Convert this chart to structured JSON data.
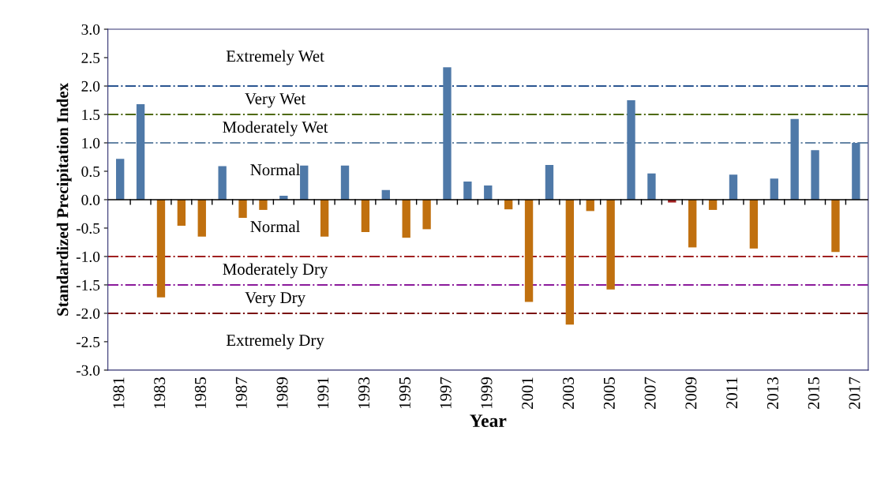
{
  "chart_data": {
    "type": "bar",
    "xlabel": "Year",
    "ylabel": "Standardized Precipitation Index",
    "categories": [
      "1981",
      null,
      "1983",
      null,
      "1985",
      null,
      "1987",
      null,
      "1989",
      null,
      "1991",
      null,
      "1993",
      null,
      "1995",
      null,
      "1997",
      null,
      "1999",
      null,
      "2001",
      null,
      "2003",
      null,
      "2005",
      null,
      "2007",
      null,
      "2009",
      null,
      "2011",
      null,
      "2013",
      null,
      "2015",
      null,
      "2017"
    ],
    "values": [
      0.72,
      1.68,
      -1.72,
      -0.46,
      -0.65,
      0.59,
      -0.32,
      -0.18,
      0.07,
      0.6,
      -0.65,
      0.6,
      -0.57,
      0.17,
      -0.67,
      -0.52,
      2.33,
      0.32,
      0.25,
      -0.17,
      -1.8,
      0.61,
      -2.2,
      -0.2,
      -1.58,
      1.75,
      0.46,
      -0.05,
      -0.84,
      -0.18,
      0.44,
      -0.86,
      0.37,
      1.42,
      0.87,
      -0.92,
      1.0
    ],
    "colors": [
      "#4f79a8",
      "#4f79a8",
      "#c0700f",
      "#c0700f",
      "#c0700f",
      "#4f79a8",
      "#c0700f",
      "#c0700f",
      "#4f79a8",
      "#4f79a8",
      "#c0700f",
      "#4f79a8",
      "#c0700f",
      "#4f79a8",
      "#c0700f",
      "#c0700f",
      "#4f79a8",
      "#4f79a8",
      "#4f79a8",
      "#c0700f",
      "#c0700f",
      "#4f79a8",
      "#c0700f",
      "#c0700f",
      "#c0700f",
      "#4f79a8",
      "#4f79a8",
      "#a02020",
      "#c0700f",
      "#c0700f",
      "#4f79a8",
      "#c0700f",
      "#4f79a8",
      "#4f79a8",
      "#4f79a8",
      "#c0700f",
      "#4f79a8"
    ],
    "ylim": [
      -3.0,
      3.0
    ],
    "yticks": [
      {
        "value": -3,
        "label": "-3.0"
      },
      {
        "value": -2.5,
        "label": "-2.5"
      },
      {
        "value": -2,
        "label": "-2.0"
      },
      {
        "value": -1.5,
        "label": "-1.5"
      },
      {
        "value": -1,
        "label": "-1.0"
      },
      {
        "value": -0.5,
        "label": "-0.5"
      },
      {
        "value": 0,
        "label": "0.0"
      },
      {
        "value": 0.5,
        "label": "0.5"
      },
      {
        "value": 1,
        "label": "1.0"
      },
      {
        "value": 1.5,
        "label": "1.5"
      },
      {
        "value": 2,
        "label": "2.0"
      },
      {
        "value": 2.5,
        "label": "2.5"
      },
      {
        "value": 3,
        "label": "3.0"
      }
    ],
    "ref_lines": [
      {
        "axis": "y",
        "value": 2.0,
        "color": "#2a5590",
        "line_style": "dashdot"
      },
      {
        "axis": "y",
        "value": 1.5,
        "color": "#4f6a10",
        "line_style": "dashdot"
      },
      {
        "axis": "y",
        "value": 1.0,
        "color": "#6585a5",
        "line_style": "dashdot"
      },
      {
        "axis": "y",
        "value": -1.0,
        "color": "#a02020",
        "line_style": "dashdot"
      },
      {
        "axis": "y",
        "value": -1.5,
        "color": "#8b1a9b",
        "line_style": "dashdot"
      },
      {
        "axis": "y",
        "value": -2.0,
        "color": "#7a1010",
        "line_style": "dashdot"
      }
    ],
    "annotations": [
      "Extremely Wet",
      "Very Wet",
      "Moderately Wet",
      "Normal",
      "Normal",
      "Moderately Dry",
      "Very Dry",
      "Extremely Dry"
    ],
    "grid": false,
    "legend": false
  }
}
